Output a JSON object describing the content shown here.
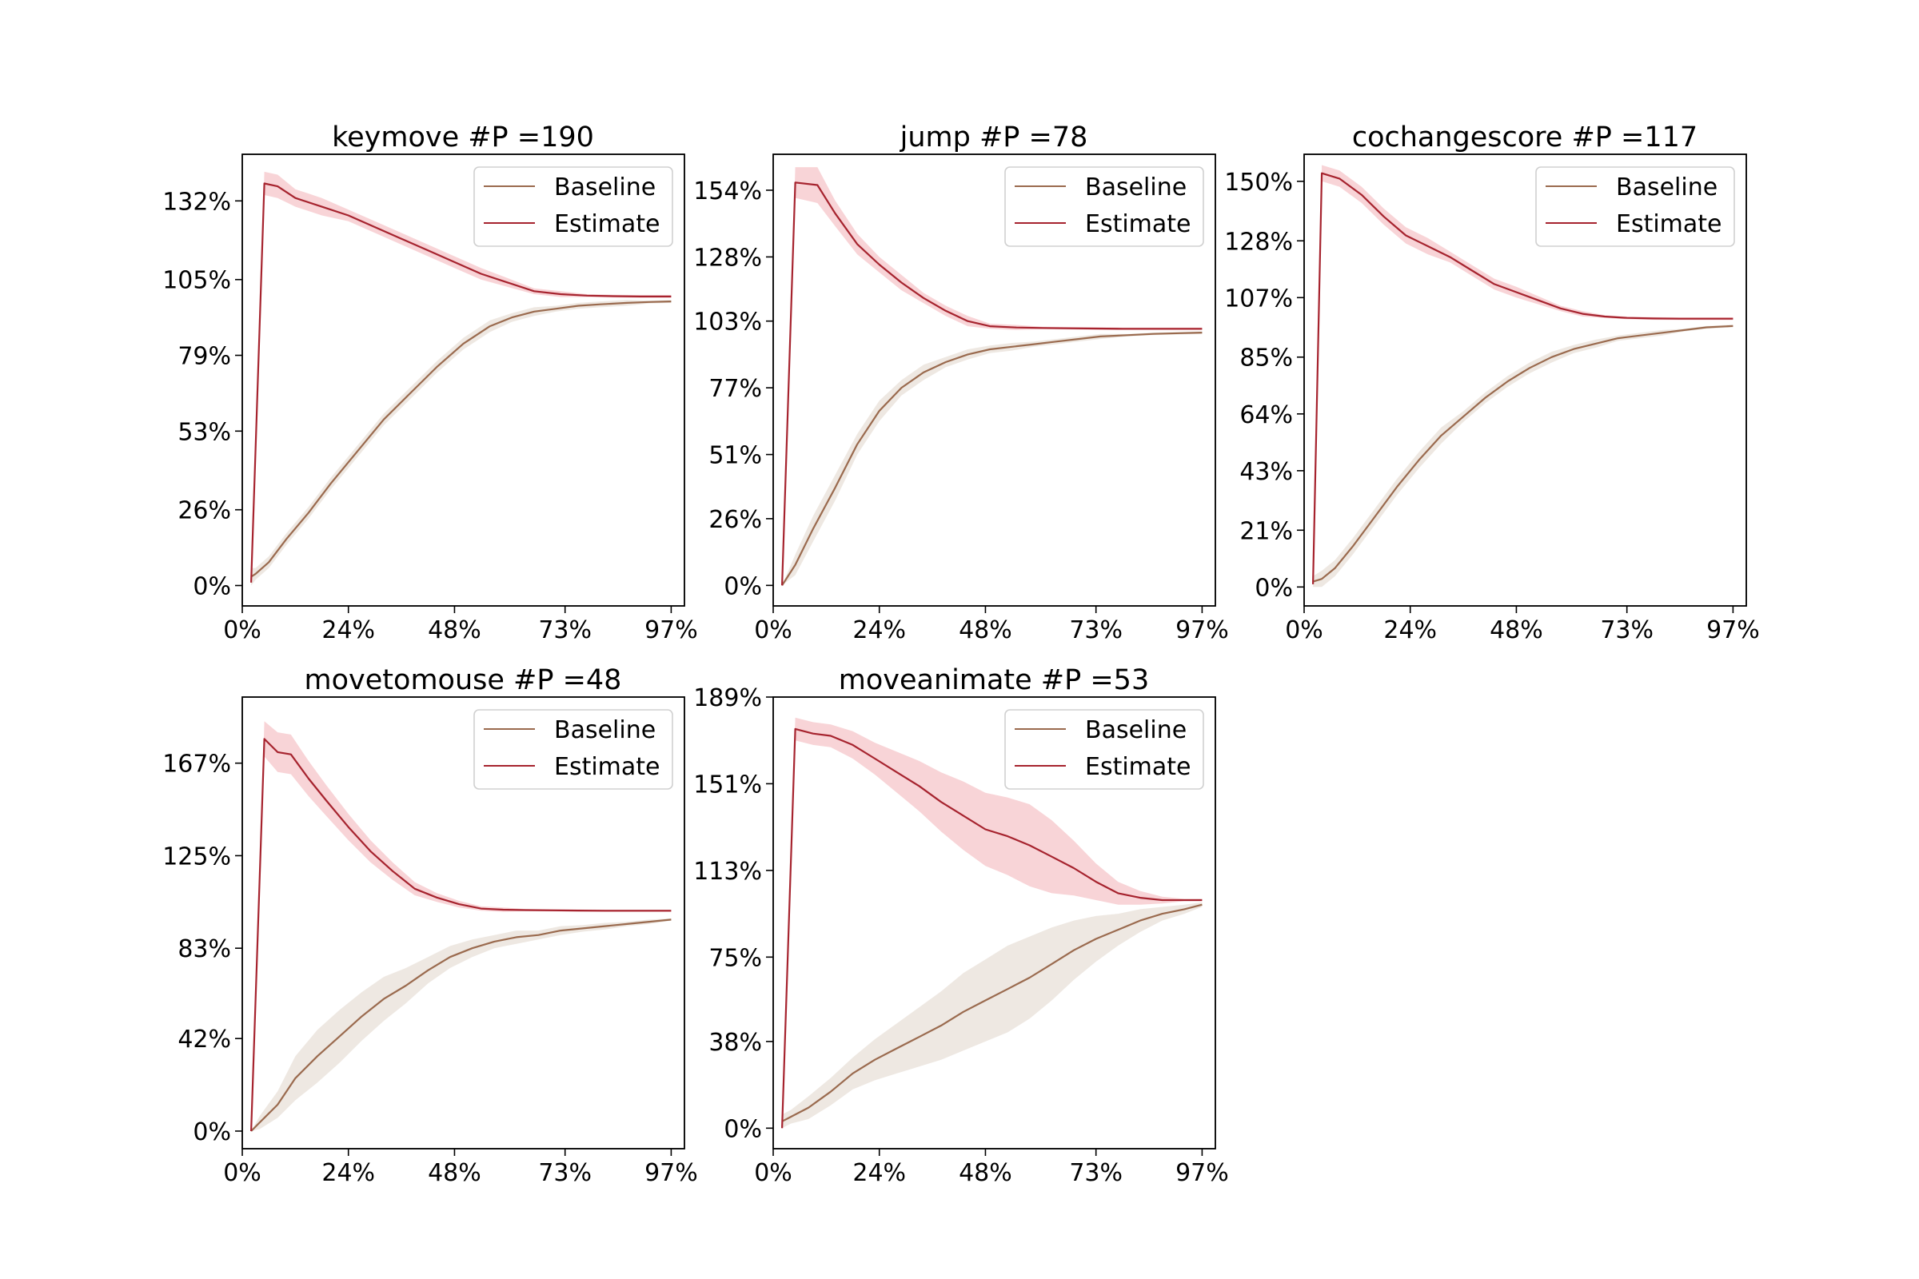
{
  "chart_data": [
    {
      "type": "line",
      "title": "keymove #P =190",
      "xlabel": "",
      "ylabel": "",
      "xlim": [
        0,
        100
      ],
      "ylim": [
        -7,
        148
      ],
      "x_ticks": [
        0,
        24,
        48,
        73,
        97
      ],
      "x_tick_labels": [
        "0%",
        "24%",
        "48%",
        "73%",
        "97%"
      ],
      "y_ticks": [
        0,
        26,
        53,
        79,
        105,
        132
      ],
      "y_tick_labels": [
        "0%",
        "26%",
        "53%",
        "79%",
        "105%",
        "132%"
      ],
      "legend": [
        "Baseline",
        "Estimate"
      ],
      "legend_position": "top-right",
      "series": [
        {
          "name": "Baseline",
          "color": "#9a6a4e",
          "band_color": "#e8e0d8",
          "x": [
            2,
            3,
            6,
            10,
            15,
            20,
            26,
            32,
            38,
            44,
            50,
            56,
            61,
            66,
            71,
            76,
            81,
            87,
            92,
            97
          ],
          "y": [
            3,
            4,
            8,
            16,
            25,
            35,
            46,
            57,
            66,
            75,
            83,
            89,
            92,
            94,
            95,
            96,
            96.5,
            97,
            97.3,
            97.5
          ],
          "band": [
            3,
            2,
            2,
            2,
            2,
            2,
            2,
            2,
            2,
            2,
            2,
            2,
            1.5,
            1.5,
            1,
            1,
            1,
            1,
            0.5,
            0.5
          ]
        },
        {
          "name": "Estimate",
          "color": "#a6232e",
          "band_color": "#f5c6c9",
          "x": [
            2,
            5,
            8,
            12,
            18,
            24,
            30,
            36,
            42,
            48,
            54,
            60,
            66,
            72,
            78,
            84,
            90,
            97
          ],
          "y": [
            1,
            138,
            137,
            133,
            130,
            127,
            123,
            119,
            115,
            111,
            107,
            104,
            101,
            100,
            99.5,
            99.3,
            99.2,
            99.2
          ],
          "band": [
            0,
            4,
            4,
            3,
            3,
            2,
            2,
            2,
            2,
            2,
            2,
            1.5,
            1,
            1,
            0.5,
            0.5,
            0.5,
            0.5
          ]
        }
      ]
    },
    {
      "type": "line",
      "title": "jump #P =78",
      "xlabel": "",
      "ylabel": "",
      "xlim": [
        0,
        100
      ],
      "ylim": [
        -8,
        168
      ],
      "x_ticks": [
        0,
        24,
        48,
        73,
        97
      ],
      "x_tick_labels": [
        "0%",
        "24%",
        "48%",
        "73%",
        "97%"
      ],
      "y_ticks": [
        0,
        26,
        51,
        77,
        103,
        128,
        154
      ],
      "y_tick_labels": [
        "0%",
        "26%",
        "51%",
        "77%",
        "103%",
        "128%",
        "154%"
      ],
      "legend": [
        "Baseline",
        "Estimate"
      ],
      "legend_position": "top-right",
      "series": [
        {
          "name": "Baseline",
          "color": "#9a6a4e",
          "band_color": "#e8e0d8",
          "x": [
            2,
            5,
            9,
            14,
            19,
            24,
            29,
            34,
            39,
            44,
            49,
            54,
            59,
            64,
            69,
            74,
            80,
            86,
            92,
            97
          ],
          "y": [
            0,
            8,
            22,
            38,
            55,
            68,
            77,
            83,
            87,
            90,
            92,
            93,
            94,
            95,
            96,
            97,
            97.5,
            98,
            98.3,
            98.5
          ],
          "band": [
            0,
            4,
            5,
            5,
            4,
            4,
            3,
            3,
            2,
            2,
            1.5,
            1.5,
            1,
            1,
            1,
            1,
            0.5,
            0.5,
            0.5,
            0.5
          ]
        },
        {
          "name": "Estimate",
          "color": "#a6232e",
          "band_color": "#f5c6c9",
          "x": [
            2,
            5,
            10,
            14,
            19,
            24,
            29,
            34,
            39,
            44,
            49,
            55,
            61,
            67,
            73,
            79,
            85,
            91,
            97
          ],
          "y": [
            0,
            157,
            156,
            145,
            133,
            125,
            118,
            112,
            107,
            103,
            101,
            100.5,
            100.3,
            100.2,
            100.1,
            100,
            100,
            100,
            100
          ],
          "band": [
            0,
            6,
            7,
            5,
            4,
            3,
            3,
            2,
            2,
            2,
            1,
            1,
            0.5,
            0.5,
            0.5,
            0.5,
            0.5,
            0.5,
            0.5
          ]
        }
      ]
    },
    {
      "type": "line",
      "title": "cochangescore #P =117",
      "xlabel": "",
      "ylabel": "",
      "xlim": [
        0,
        100
      ],
      "ylim": [
        -7,
        160
      ],
      "x_ticks": [
        0,
        24,
        48,
        73,
        97
      ],
      "x_tick_labels": [
        "0%",
        "24%",
        "48%",
        "73%",
        "97%"
      ],
      "y_ticks": [
        0,
        21,
        43,
        64,
        85,
        107,
        128,
        150
      ],
      "y_tick_labels": [
        "0%",
        "21%",
        "43%",
        "64%",
        "85%",
        "107%",
        "128%",
        "150%"
      ],
      "legend": [
        "Baseline",
        "Estimate"
      ],
      "legend_position": "top-right",
      "series": [
        {
          "name": "Baseline",
          "color": "#9a6a4e",
          "band_color": "#e8e0d8",
          "x": [
            2,
            4,
            7,
            11,
            16,
            21,
            26,
            31,
            36,
            41,
            46,
            51,
            56,
            61,
            66,
            71,
            76,
            81,
            86,
            91,
            97
          ],
          "y": [
            2,
            3,
            7,
            15,
            26,
            37,
            47,
            56,
            63,
            70,
            76,
            81,
            85,
            88,
            90,
            92,
            93,
            94,
            95,
            96,
            96.5
          ],
          "band": [
            2,
            3,
            3,
            3,
            3,
            3,
            3,
            3,
            2,
            2,
            2,
            2,
            2,
            1.5,
            1.5,
            1,
            1,
            1,
            0.5,
            0.5,
            0.5
          ]
        },
        {
          "name": "Estimate",
          "color": "#a6232e",
          "band_color": "#f5c6c9",
          "x": [
            2,
            4,
            8,
            13,
            18,
            23,
            28,
            33,
            38,
            43,
            48,
            53,
            58,
            63,
            68,
            73,
            79,
            85,
            91,
            97
          ],
          "y": [
            1,
            153,
            151,
            145,
            137,
            130,
            126,
            122,
            117,
            112,
            109,
            106,
            103,
            101,
            100,
            99.5,
            99.3,
            99.2,
            99.2,
            99.2
          ],
          "band": [
            0,
            3,
            3,
            3,
            3,
            3,
            3,
            2,
            2,
            2,
            2,
            1.5,
            1,
            1,
            0.5,
            0.5,
            0.5,
            0.5,
            0.5,
            0.5
          ]
        }
      ]
    },
    {
      "type": "line",
      "title": "movetomouse #P =48",
      "xlabel": "",
      "ylabel": "",
      "xlim": [
        0,
        100
      ],
      "ylim": [
        -8,
        197
      ],
      "x_ticks": [
        0,
        24,
        48,
        73,
        97
      ],
      "x_tick_labels": [
        "0%",
        "24%",
        "48%",
        "73%",
        "97%"
      ],
      "y_ticks": [
        0,
        42,
        83,
        125,
        167
      ],
      "y_tick_labels": [
        "0%",
        "42%",
        "83%",
        "125%",
        "167%"
      ],
      "legend": [
        "Baseline",
        "Estimate"
      ],
      "legend_position": "top-right",
      "series": [
        {
          "name": "Baseline",
          "color": "#9a6a4e",
          "band_color": "#e8e0d8",
          "x": [
            2,
            4,
            8,
            12,
            17,
            22,
            27,
            32,
            37,
            42,
            47,
            52,
            57,
            62,
            67,
            72,
            77,
            82,
            87,
            92,
            97
          ],
          "y": [
            0,
            4,
            12,
            24,
            34,
            43,
            52,
            60,
            66,
            73,
            79,
            83,
            86,
            88,
            89,
            91,
            92,
            93,
            94,
            95,
            96
          ],
          "band": [
            0,
            3,
            6,
            10,
            12,
            12,
            11,
            10,
            8,
            6,
            5,
            4,
            3,
            3,
            2,
            2,
            1.5,
            1.5,
            1,
            1,
            0.5
          ]
        },
        {
          "name": "Estimate",
          "color": "#a6232e",
          "band_color": "#f5c6c9",
          "x": [
            2,
            5,
            8,
            11,
            15,
            19,
            24,
            29,
            34,
            39,
            44,
            49,
            54,
            59,
            64,
            70,
            76,
            82,
            88,
            93,
            97
          ],
          "y": [
            0,
            178,
            172,
            171,
            160,
            150,
            138,
            127,
            118,
            110,
            106,
            103,
            101,
            100.5,
            100.3,
            100.2,
            100.1,
            100,
            100,
            100,
            100
          ],
          "band": [
            0,
            8,
            9,
            9,
            8,
            7,
            6,
            5,
            4,
            3,
            2,
            1.5,
            1,
            1,
            0.5,
            0.5,
            0.5,
            0.5,
            0.5,
            0.5,
            0.5
          ]
        }
      ]
    },
    {
      "type": "line",
      "title": "moveanimate #P =53",
      "xlabel": "",
      "ylabel": "",
      "xlim": [
        0,
        100
      ],
      "ylim": [
        -9,
        189
      ],
      "x_ticks": [
        0,
        24,
        48,
        73,
        97
      ],
      "x_tick_labels": [
        "0%",
        "24%",
        "48%",
        "73%",
        "97%"
      ],
      "y_ticks": [
        0,
        38,
        75,
        113,
        151,
        189
      ],
      "y_tick_labels": [
        "0%",
        "38%",
        "75%",
        "113%",
        "151%",
        "189%"
      ],
      "legend": [
        "Baseline",
        "Estimate"
      ],
      "legend_position": "top-right",
      "series": [
        {
          "name": "Baseline",
          "color": "#9a6a4e",
          "band_color": "#e8e0d8",
          "x": [
            2,
            4,
            8,
            13,
            18,
            23,
            28,
            33,
            38,
            43,
            48,
            53,
            58,
            63,
            68,
            73,
            78,
            83,
            88,
            93,
            97
          ],
          "y": [
            3,
            5,
            9,
            16,
            24,
            30,
            35,
            40,
            45,
            51,
            56,
            61,
            66,
            72,
            78,
            83,
            87,
            91,
            94,
            96,
            98
          ],
          "band": [
            3,
            3,
            5,
            6,
            7,
            9,
            11,
            13,
            15,
            17,
            18,
            19,
            18,
            16,
            13,
            10,
            7,
            5,
            3,
            2,
            1
          ]
        },
        {
          "name": "Estimate",
          "color": "#a6232e",
          "band_color": "#f5c6c9",
          "x": [
            2,
            5,
            9,
            13,
            18,
            23,
            28,
            33,
            38,
            43,
            48,
            53,
            58,
            63,
            68,
            73,
            78,
            83,
            88,
            93,
            97
          ],
          "y": [
            0,
            175,
            173,
            172,
            168,
            162,
            156,
            150,
            143,
            137,
            131,
            128,
            124,
            119,
            114,
            108,
            103,
            101,
            100,
            100,
            100
          ],
          "band": [
            0,
            5,
            5,
            5,
            6,
            7,
            9,
            11,
            13,
            15,
            16,
            17,
            18,
            16,
            12,
            8,
            5,
            3,
            1.5,
            0.5,
            0.5
          ]
        }
      ]
    }
  ]
}
